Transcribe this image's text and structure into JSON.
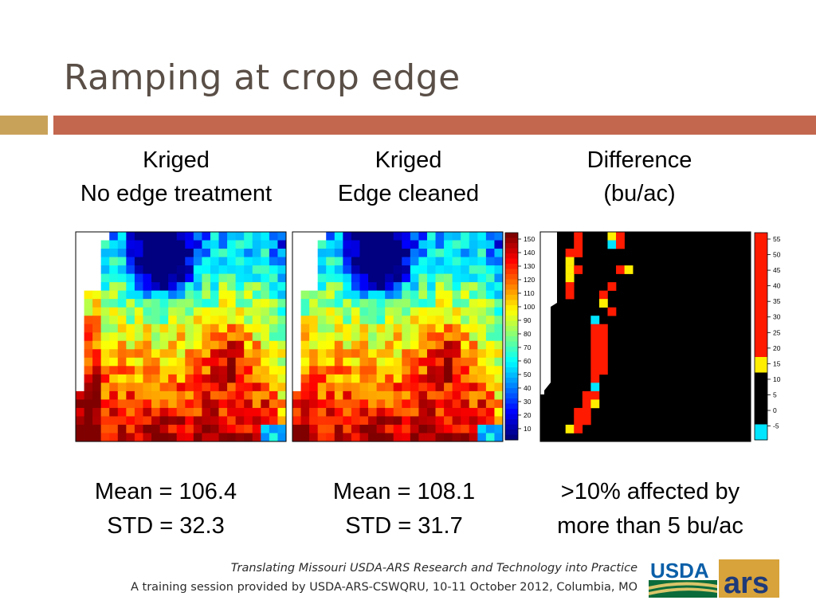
{
  "slide": {
    "title": "Ramping at crop edge"
  },
  "panels": [
    {
      "heading_line1": "Kriged",
      "heading_line2": "No edge treatment",
      "stat_line1": "Mean = 106.4",
      "stat_line2": "STD = 32.3"
    },
    {
      "heading_line1": "Kriged",
      "heading_line2": "Edge cleaned",
      "stat_line1": "Mean = 108.1",
      "stat_line2": "STD = 31.7"
    },
    {
      "heading_line1": "Difference",
      "heading_line2": "(bu/ac)",
      "stat_line1": ">10% affected by",
      "stat_line2": "more than 5 bu/ac"
    }
  ],
  "yield_legend": {
    "ticks": [
      "150",
      "140",
      "130",
      "120",
      "110",
      "100",
      "90",
      "80",
      "70",
      "60",
      "50",
      "40",
      "30",
      "20",
      "10"
    ]
  },
  "difference_legend": {
    "ticks": [
      "55",
      "50",
      "45",
      "40",
      "35",
      "30",
      "25",
      "20",
      "15",
      "10",
      "5",
      "0",
      "-5"
    ]
  },
  "footer": {
    "line1": "Translating Missouri USDA-ARS Research and Technology into Practice",
    "line2": "A training session provided by USDA-ARS-CSWQRU, 10-11 October 2012, Columbia, MO"
  },
  "logo": {
    "usda_text": "USDA",
    "ars_text": "ars"
  },
  "colors": {
    "title": "#5a4f47",
    "accent_gold": "#c9a25a",
    "accent_rust": "#c4674f",
    "map_red": "#ff1a00",
    "map_orange": "#ff7a00",
    "map_yellow": "#ffe600",
    "map_green": "#00e000",
    "map_cyan": "#00e0ff",
    "map_blue": "#0044ff",
    "diff_black": "#000000"
  }
}
